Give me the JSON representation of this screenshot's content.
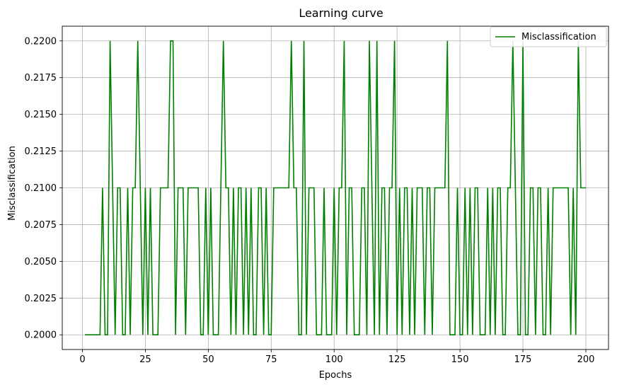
{
  "chart_data": {
    "type": "line",
    "title": "Learning curve",
    "xlabel": "Epochs",
    "ylabel": "Misclassification",
    "xlim": [
      -8,
      209
    ],
    "ylim": [
      0.199,
      0.221
    ],
    "xticks": [
      0,
      25,
      50,
      75,
      100,
      125,
      150,
      175,
      200
    ],
    "yticks": [
      0.2,
      0.2025,
      0.205,
      0.2075,
      0.21,
      0.2125,
      0.215,
      0.2175,
      0.22
    ],
    "ytick_labels": [
      "0.2000",
      "0.2025",
      "0.2050",
      "0.2075",
      "0.2100",
      "0.2125",
      "0.2150",
      "0.2175",
      "0.2200"
    ],
    "grid": true,
    "legend_position": "top-right",
    "series": [
      {
        "name": "Misclassification",
        "color": "#008000",
        "x_start": 1,
        "x_step": 1,
        "values": [
          0.2,
          0.2,
          0.2,
          0.2,
          0.2,
          0.2,
          0.2,
          0.21,
          0.2,
          0.2,
          0.22,
          0.21,
          0.2,
          0.21,
          0.21,
          0.2,
          0.2,
          0.21,
          0.2,
          0.21,
          0.21,
          0.22,
          0.21,
          0.2,
          0.21,
          0.2,
          0.21,
          0.2,
          0.2,
          0.2,
          0.21,
          0.21,
          0.21,
          0.21,
          0.22,
          0.22,
          0.2,
          0.21,
          0.21,
          0.21,
          0.2,
          0.21,
          0.21,
          0.21,
          0.21,
          0.21,
          0.2,
          0.2,
          0.21,
          0.2,
          0.21,
          0.2,
          0.2,
          0.2,
          0.21,
          0.22,
          0.21,
          0.21,
          0.2,
          0.21,
          0.2,
          0.21,
          0.21,
          0.2,
          0.21,
          0.2,
          0.21,
          0.2,
          0.2,
          0.21,
          0.21,
          0.2,
          0.21,
          0.2,
          0.2,
          0.21,
          0.21,
          0.21,
          0.21,
          0.21,
          0.21,
          0.21,
          0.22,
          0.21,
          0.21,
          0.2,
          0.2,
          0.22,
          0.2,
          0.21,
          0.21,
          0.21,
          0.2,
          0.2,
          0.2,
          0.21,
          0.2,
          0.2,
          0.2,
          0.21,
          0.2,
          0.21,
          0.21,
          0.22,
          0.2,
          0.21,
          0.21,
          0.2,
          0.2,
          0.2,
          0.21,
          0.21,
          0.2,
          0.22,
          0.21,
          0.2,
          0.22,
          0.2,
          0.21,
          0.21,
          0.2,
          0.21,
          0.21,
          0.22,
          0.2,
          0.21,
          0.2,
          0.21,
          0.21,
          0.2,
          0.21,
          0.2,
          0.21,
          0.21,
          0.21,
          0.2,
          0.21,
          0.21,
          0.2,
          0.21,
          0.21,
          0.21,
          0.21,
          0.21,
          0.22,
          0.2,
          0.2,
          0.2,
          0.21,
          0.2,
          0.2,
          0.21,
          0.2,
          0.21,
          0.2,
          0.21,
          0.21,
          0.2,
          0.2,
          0.2,
          0.21,
          0.2,
          0.21,
          0.2,
          0.21,
          0.21,
          0.2,
          0.2,
          0.21,
          0.21,
          0.22,
          0.21,
          0.2,
          0.2,
          0.22,
          0.2,
          0.2,
          0.21,
          0.21,
          0.2,
          0.21,
          0.21,
          0.2,
          0.2,
          0.21,
          0.2,
          0.21,
          0.21,
          0.21,
          0.21,
          0.21,
          0.21,
          0.21,
          0.2,
          0.21,
          0.2,
          0.22,
          0.21,
          0.21,
          0.21
        ]
      }
    ]
  }
}
